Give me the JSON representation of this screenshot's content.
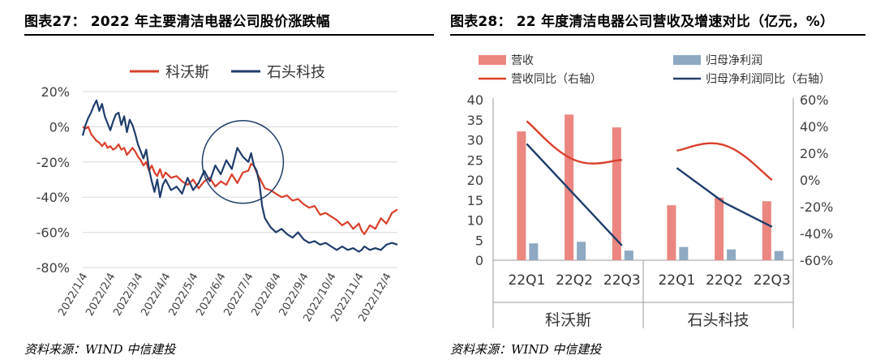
{
  "left_panel": {
    "figure_title": "图表27：  2022 年主要清洁电器公司股价涨跌幅",
    "source": "资料来源：WIND    中信建投"
  },
  "right_panel": {
    "figure_title": "图表28：  22 年度清洁电器公司营收及增速对比（亿元，%）",
    "source": "资料来源：WIND    中信建投"
  },
  "chart_data": [
    {
      "type": "line",
      "title": "2022 年主要清洁电器公司股价涨跌幅",
      "xlabel": "",
      "ylabel": "",
      "ylim": [
        -0.8,
        0.2
      ],
      "y_ticks": [
        0.2,
        0,
        -0.2,
        -0.4,
        -0.6,
        -0.8
      ],
      "y_tick_labels": [
        "20%",
        "0%",
        "-20%",
        "-40%",
        "-60%",
        "-80%"
      ],
      "x_tick_labels": [
        "2022/1/4",
        "2022/2/4",
        "2022/3/4",
        "2022/4/4",
        "2022/5/4",
        "2022/6/4",
        "2022/7/4",
        "2022/8/4",
        "2022/9/4",
        "2022/10/4",
        "2022/11/4",
        "2022/12/4"
      ],
      "x_range_months": [
        0,
        11.4
      ],
      "legend_position": "top",
      "grid": "horizontal",
      "annotation": "circle highlighting June–July 2022 drop",
      "annotation_center": [
        5.8,
        -0.2
      ],
      "series": [
        {
          "name": "科沃斯",
          "color": "#d93f2b",
          "x": [
            0,
            0.1,
            0.2,
            0.3,
            0.4,
            0.5,
            0.6,
            0.7,
            0.8,
            0.9,
            1.0,
            1.1,
            1.2,
            1.3,
            1.4,
            1.5,
            1.6,
            1.7,
            1.8,
            1.9,
            2.0,
            2.1,
            2.2,
            2.3,
            2.4,
            2.5,
            2.6,
            2.7,
            2.8,
            2.9,
            3.0,
            3.2,
            3.4,
            3.6,
            3.8,
            4.0,
            4.2,
            4.4,
            4.6,
            4.8,
            5.0,
            5.2,
            5.4,
            5.6,
            5.8,
            6.0,
            6.1,
            6.2,
            6.3,
            6.4,
            6.5,
            6.6,
            6.8,
            7.0,
            7.2,
            7.4,
            7.6,
            7.8,
            8.0,
            8.2,
            8.4,
            8.6,
            8.8,
            9.0,
            9.2,
            9.4,
            9.6,
            9.8,
            10.0,
            10.1,
            10.2,
            10.4,
            10.6,
            10.8,
            11.0,
            11.2,
            11.4
          ],
          "y": [
            0.0,
            -0.01,
            0.0,
            -0.04,
            -0.06,
            -0.08,
            -0.09,
            -0.11,
            -0.09,
            -0.12,
            -0.11,
            -0.13,
            -0.12,
            -0.1,
            -0.13,
            -0.12,
            -0.16,
            -0.14,
            -0.12,
            -0.14,
            -0.17,
            -0.19,
            -0.22,
            -0.2,
            -0.25,
            -0.22,
            -0.26,
            -0.28,
            -0.24,
            -0.29,
            -0.26,
            -0.29,
            -0.28,
            -0.31,
            -0.33,
            -0.3,
            -0.35,
            -0.31,
            -0.29,
            -0.34,
            -0.31,
            -0.33,
            -0.27,
            -0.32,
            -0.26,
            -0.25,
            -0.21,
            -0.22,
            -0.26,
            -0.29,
            -0.32,
            -0.35,
            -0.36,
            -0.38,
            -0.4,
            -0.39,
            -0.42,
            -0.41,
            -0.44,
            -0.46,
            -0.45,
            -0.5,
            -0.49,
            -0.51,
            -0.53,
            -0.56,
            -0.54,
            -0.58,
            -0.55,
            -0.59,
            -0.61,
            -0.56,
            -0.58,
            -0.52,
            -0.55,
            -0.49,
            -0.47
          ]
        },
        {
          "name": "石头科技",
          "color": "#1f3d6b",
          "x": [
            0,
            0.1,
            0.2,
            0.3,
            0.4,
            0.5,
            0.6,
            0.7,
            0.8,
            0.9,
            1.0,
            1.1,
            1.2,
            1.3,
            1.4,
            1.5,
            1.6,
            1.7,
            1.8,
            1.9,
            2.0,
            2.1,
            2.2,
            2.3,
            2.4,
            2.5,
            2.6,
            2.7,
            2.8,
            2.9,
            3.0,
            3.2,
            3.4,
            3.6,
            3.8,
            4.0,
            4.2,
            4.4,
            4.6,
            4.8,
            5.0,
            5.2,
            5.4,
            5.6,
            5.8,
            6.0,
            6.1,
            6.2,
            6.3,
            6.4,
            6.5,
            6.6,
            6.8,
            7.0,
            7.2,
            7.4,
            7.6,
            7.8,
            8.0,
            8.2,
            8.4,
            8.6,
            8.8,
            9.0,
            9.2,
            9.4,
            9.6,
            9.8,
            10.0,
            10.1,
            10.2,
            10.4,
            10.6,
            10.8,
            11.0,
            11.2,
            11.4
          ],
          "y": [
            -0.05,
            0.01,
            0.05,
            0.08,
            0.12,
            0.15,
            0.09,
            0.13,
            0.06,
            0.02,
            -0.02,
            0.03,
            0.07,
            0.08,
            0.01,
            0.06,
            -0.03,
            0.04,
            0.01,
            -0.04,
            -0.1,
            -0.14,
            -0.18,
            -0.13,
            -0.24,
            -0.31,
            -0.37,
            -0.3,
            -0.4,
            -0.33,
            -0.3,
            -0.36,
            -0.34,
            -0.38,
            -0.29,
            -0.36,
            -0.32,
            -0.25,
            -0.31,
            -0.22,
            -0.27,
            -0.19,
            -0.24,
            -0.12,
            -0.17,
            -0.2,
            -0.15,
            -0.22,
            -0.25,
            -0.32,
            -0.45,
            -0.52,
            -0.57,
            -0.6,
            -0.58,
            -0.61,
            -0.63,
            -0.6,
            -0.64,
            -0.66,
            -0.65,
            -0.67,
            -0.66,
            -0.68,
            -0.7,
            -0.68,
            -0.7,
            -0.69,
            -0.71,
            -0.7,
            -0.68,
            -0.7,
            -0.69,
            -0.7,
            -0.67,
            -0.66,
            -0.67
          ]
        }
      ]
    },
    {
      "type": "bar",
      "title": "22 年度清洁电器公司营收及增速对比（亿元，%）",
      "categories": [
        "22Q1",
        "22Q2",
        "22Q3"
      ],
      "groups": [
        "科沃斯",
        "石头科技"
      ],
      "ylim": [
        0,
        40
      ],
      "y_ticks": [
        0,
        5,
        10,
        15,
        20,
        25,
        30,
        35,
        40
      ],
      "y2lim": [
        -0.6,
        0.6
      ],
      "y2_ticks": [
        0.6,
        0.4,
        0.2,
        0,
        -0.2,
        -0.4,
        -0.6
      ],
      "y2_tick_labels": [
        "60%",
        "40%",
        "20%",
        "0%",
        "-20%",
        "-40%",
        "-60%"
      ],
      "legend_position": "top",
      "grid": "none",
      "series": [
        {
          "name": "营收",
          "kind": "bar",
          "color": "#eb8680",
          "axis": "left",
          "values": {
            "科沃斯": [
              32.1,
              36.3,
              33.1
            ],
            "石头科技": [
              13.7,
              15.6,
              14.7
            ]
          }
        },
        {
          "name": "归母净利润",
          "kind": "bar",
          "color": "#8ea9c1",
          "axis": "left",
          "values": {
            "科沃斯": [
              4.2,
              4.6,
              2.4
            ],
            "石头科技": [
              3.3,
              2.7,
              2.3
            ]
          }
        },
        {
          "name": "营收同比（右轴）",
          "kind": "line",
          "color": "#d93f2b",
          "axis": "right",
          "values": {
            "科沃斯": [
              0.44,
              0.15,
              0.15
            ],
            "石头科技": [
              0.22,
              0.26,
              0.0
            ]
          }
        },
        {
          "name": "归母净利润同比（右轴）",
          "kind": "line",
          "color": "#1f3d6b",
          "axis": "right",
          "values": {
            "科沃斯": [
              0.27,
              -0.11,
              -0.49
            ],
            "石头科技": [
              0.09,
              -0.17,
              -0.35
            ]
          }
        }
      ]
    }
  ]
}
